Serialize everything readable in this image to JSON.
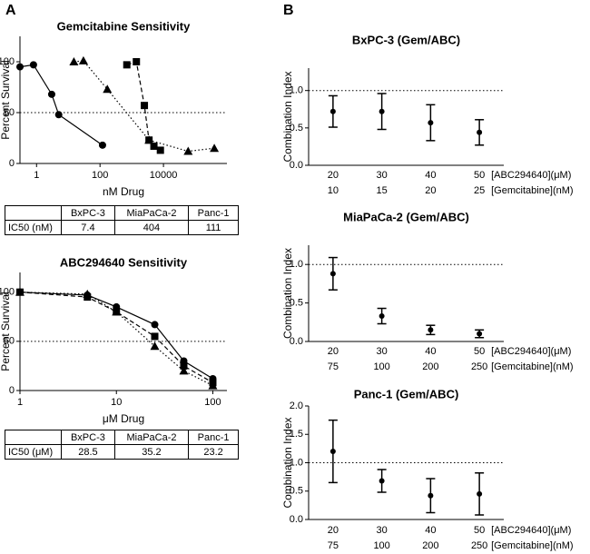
{
  "panel_labels": [
    "A",
    "B"
  ],
  "chart_data": [
    {
      "type": "line",
      "title": "Gemcitabine Sensitivity",
      "x_label": "nM Drug",
      "y_label": "Percent Survival",
      "x_scale": "log",
      "xlim": [
        0.3,
        1000000
      ],
      "xticks": [
        1,
        100,
        10000
      ],
      "ylim": [
        0,
        125
      ],
      "yticks": [
        0,
        50,
        100
      ],
      "reference_line": 50,
      "series": [
        {
          "color": "#000000",
          "marker": "circle",
          "line_style": "solid",
          "x": [
            0.3,
            0.8,
            3,
            5,
            120
          ],
          "values": [
            95,
            97,
            68,
            48,
            18
          ]
        },
        {
          "color": "#000000",
          "marker": "square",
          "line_style": "dashed",
          "x": [
            700,
            1400,
            2500,
            3500,
            5000,
            8000
          ],
          "values": [
            97,
            100,
            57,
            23,
            17,
            13
          ]
        },
        {
          "color": "#000000",
          "marker": "triangle",
          "line_style": "dotted",
          "x": [
            15,
            30,
            170,
            3500,
            60000,
            400000
          ],
          "values": [
            100,
            101,
            73,
            23,
            12,
            15
          ]
        }
      ]
    },
    {
      "type": "line",
      "title": "ABC294640 Sensitivity",
      "x_label": "μM Drug",
      "y_label": "Percent Survival",
      "x_scale": "log",
      "xlim": [
        1,
        140
      ],
      "xticks": [
        1,
        10,
        100
      ],
      "ylim": [
        0,
        120
      ],
      "yticks": [
        0,
        50,
        100
      ],
      "reference_line": 50,
      "series": [
        {
          "color": "#000000",
          "marker": "circle",
          "line_style": "solid",
          "x": [
            1,
            5,
            10,
            25,
            50,
            100
          ],
          "values": [
            100,
            97,
            85,
            67,
            30,
            12
          ]
        },
        {
          "color": "#000000",
          "marker": "square",
          "line_style": "dashed",
          "x": [
            1,
            5,
            10,
            25,
            50,
            100
          ],
          "values": [
            100,
            95,
            80,
            55,
            25,
            8
          ]
        },
        {
          "color": "#000000",
          "marker": "triangle",
          "line_style": "dotted",
          "x": [
            1,
            5,
            10,
            25,
            50,
            100
          ],
          "values": [
            100,
            98,
            80,
            45,
            20,
            5
          ]
        }
      ]
    },
    {
      "type": "errorbar",
      "title": "BxPC-3 (Gem/ABC)",
      "y_label": "Combination Index",
      "categories": [
        20,
        30,
        40,
        50
      ],
      "categories2": [
        10,
        15,
        20,
        25
      ],
      "category_labels": [
        "[ABC294640](μM)",
        "[Gemcitabine](nM)"
      ],
      "ylim": [
        0,
        1.3
      ],
      "yticks": [
        {
          "value": 0,
          "label": "0.0"
        },
        {
          "value": 0.5,
          "label": "0.5"
        },
        {
          "value": 1,
          "label": "1.0"
        }
      ],
      "reference_line": 1,
      "color": "#000000",
      "values": [
        0.72,
        0.72,
        0.57,
        0.44
      ],
      "errors": [
        0.21,
        0.24,
        0.24,
        0.17
      ]
    },
    {
      "type": "errorbar",
      "title": "MiaPaCa-2 (Gem/ABC)",
      "y_label": "Combination Index",
      "categories": [
        20,
        30,
        40,
        50
      ],
      "categories2": [
        75,
        100,
        200,
        250
      ],
      "category_labels": [
        "[ABC294640](μM)",
        "[Gemcitabine](nM)"
      ],
      "ylim": [
        0,
        1.25
      ],
      "yticks": [
        {
          "value": 0,
          "label": "0.0"
        },
        {
          "value": 0.5,
          "label": "0.5"
        },
        {
          "value": 1,
          "label": "1.0"
        }
      ],
      "reference_line": 1,
      "color": "#000000",
      "values": [
        0.88,
        0.33,
        0.15,
        0.1
      ],
      "errors": [
        0.21,
        0.1,
        0.06,
        0.05
      ]
    },
    {
      "type": "errorbar",
      "title": "Panc-1 (Gem/ABC)",
      "y_label": "Combination Index",
      "categories": [
        20,
        30,
        40,
        50
      ],
      "categories2": [
        75,
        100,
        200,
        250
      ],
      "category_labels": [
        "[ABC294640](μM)",
        "[Gemcitabine](nM)"
      ],
      "ylim": [
        0,
        2
      ],
      "yticks": [
        {
          "value": 0,
          "label": "0.0"
        },
        {
          "value": 0.5,
          "label": "0.5"
        },
        {
          "value": 1,
          "label": "1.0"
        },
        {
          "value": 1.5,
          "label": "1.5"
        },
        {
          "value": 2,
          "label": "2.0"
        }
      ],
      "reference_line": 1,
      "color": "#000000",
      "values": [
        1.2,
        0.68,
        0.42,
        0.45
      ],
      "errors": [
        0.55,
        0.2,
        0.3,
        0.37
      ]
    }
  ],
  "tables": [
    {
      "columns": [
        "BxPC-3",
        "MiaPaCa-2",
        "Panc-1"
      ],
      "rows": [
        {
          "label": "IC50 (nM)",
          "values": [
            7.4,
            404,
            111
          ]
        }
      ]
    },
    {
      "columns": [
        "BxPC-3",
        "MiaPaCa-2",
        "Panc-1"
      ],
      "rows": [
        {
          "label": "IC50 (μM)",
          "values": [
            28.5,
            35.2,
            23.2
          ]
        }
      ]
    }
  ]
}
